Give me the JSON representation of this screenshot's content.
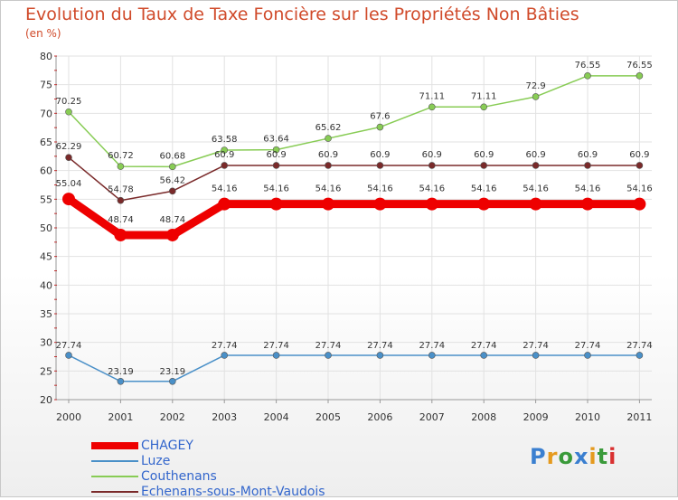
{
  "title": "Evolution du Taux de Taxe Foncière sur les Propriétés Non Bâties",
  "subtitle": "(en %)",
  "logo_letters": [
    "P",
    "r",
    "o",
    "x",
    "i",
    "t",
    "i"
  ],
  "logo_colors": [
    "#3a7fd0",
    "#e59a1e",
    "#3a9a3a",
    "#3a7fd0",
    "#e59a1e",
    "#3a9a3a",
    "#d93030"
  ],
  "chart_data": {
    "type": "line",
    "title": "Evolution du Taux de Taxe Foncière sur les Propriétés Non Bâties",
    "ylabel": "(en %)",
    "xlabel": "",
    "ylim": [
      20,
      80
    ],
    "yticks": [
      20,
      25,
      30,
      35,
      40,
      45,
      50,
      55,
      60,
      65,
      70,
      75,
      80
    ],
    "categories": [
      "2000",
      "2001",
      "2002",
      "2003",
      "2004",
      "2005",
      "2006",
      "2007",
      "2008",
      "2009",
      "2010",
      "2011"
    ],
    "grid": true,
    "legend": "bottom-left",
    "series": [
      {
        "name": "CHAGEY",
        "color": "#ee0000",
        "values": [
          55.04,
          48.74,
          48.74,
          54.16,
          54.16,
          54.16,
          54.16,
          54.16,
          54.16,
          54.16,
          54.16,
          54.16
        ],
        "labels": [
          "55.04",
          "48.74",
          "48.74",
          "54.16",
          "54.16",
          "54.16",
          "54.16",
          "54.16",
          "54.16",
          "54.16",
          "54.16",
          "54.16"
        ]
      },
      {
        "name": "Luze",
        "color": "#4a90c8",
        "values": [
          27.74,
          23.19,
          23.19,
          27.74,
          27.74,
          27.74,
          27.74,
          27.74,
          27.74,
          27.74,
          27.74,
          27.74
        ],
        "labels": [
          "27.74",
          "23.19",
          "23.19",
          "27.74",
          "27.74",
          "27.74",
          "27.74",
          "27.74",
          "27.74",
          "27.74",
          "27.74",
          "27.74"
        ]
      },
      {
        "name": "Couthenans",
        "color": "#88cc55",
        "values": [
          70.25,
          60.72,
          60.68,
          63.58,
          63.64,
          65.62,
          67.6,
          71.11,
          71.11,
          72.9,
          76.55,
          76.55
        ],
        "labels": [
          "70.25",
          "60.72",
          "60.68",
          "63.58",
          "63.64",
          "65.62",
          "67.6",
          "71.11",
          "71.11",
          "72.9",
          "76.55",
          "76.55"
        ]
      },
      {
        "name": "Echenans-sous-Mont-Vaudois",
        "color": "#7a2a2a",
        "values": [
          62.29,
          54.78,
          56.42,
          60.9,
          60.9,
          60.9,
          60.9,
          60.9,
          60.9,
          60.9,
          60.9,
          60.9
        ],
        "labels": [
          "62.29",
          "54.78",
          "56.42",
          "60.9",
          "60.9",
          "60.9",
          "60.9",
          "60.9",
          "60.9",
          "60.9",
          "60.9",
          "60.9"
        ]
      }
    ]
  }
}
